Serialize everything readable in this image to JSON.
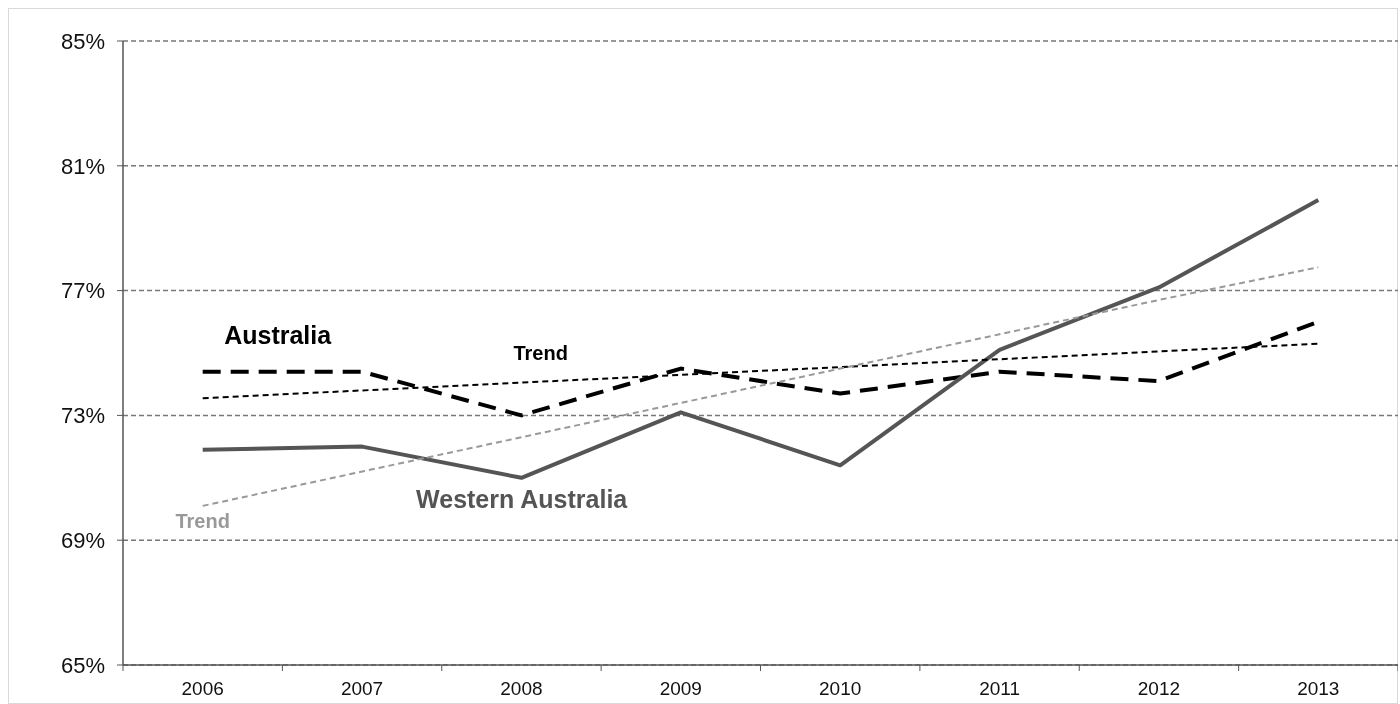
{
  "chart_data": {
    "type": "line",
    "x": [
      2006,
      2007,
      2008,
      2009,
      2010,
      2011,
      2012,
      2013
    ],
    "xlim": [
      2005.5,
      2013.5
    ],
    "xticks": [
      {
        "value": 2005.5,
        "label": null
      },
      2006,
      {
        "value": 2006.5,
        "label": null
      },
      2007,
      {
        "value": 2007.5,
        "label": null
      },
      2008,
      {
        "value": 2008.5,
        "label": null
      },
      2009,
      {
        "value": 2009.5,
        "label": null
      },
      2010,
      {
        "value": 2010.5,
        "label": null
      },
      2011,
      {
        "value": 2011.5,
        "label": null
      },
      2012,
      {
        "value": 2012.5,
        "label": null
      },
      2013,
      {
        "value": 2013.5,
        "label": null
      }
    ],
    "ylim": [
      65,
      85
    ],
    "yticks": [
      {
        "value": 65,
        "label": "65%"
      },
      {
        "value": 69,
        "label": "69%"
      },
      {
        "value": 73,
        "label": "73%"
      },
      {
        "value": 77,
        "label": "77%"
      },
      {
        "value": 81,
        "label": "81%"
      },
      {
        "value": 85,
        "label": "85%"
      }
    ],
    "grid": "y",
    "marker": "none",
    "series": [
      {
        "name": "Australia",
        "color": "#000000",
        "line_style": "dashed",
        "values": [
          74.4,
          74.4,
          73.0,
          74.5,
          73.7,
          74.4,
          74.1,
          76.0
        ]
      },
      {
        "name": "Western Australia",
        "color": "#555555",
        "line_style": "solid",
        "values": [
          71.9,
          72.0,
          71.0,
          73.1,
          71.4,
          75.1,
          77.1,
          79.9
        ]
      },
      {
        "name": "Trend",
        "color": "#000000",
        "line_style": "dashed",
        "values": [
          73.55,
          73.8,
          74.05,
          74.3,
          74.55,
          74.8,
          75.05,
          75.3
        ]
      },
      {
        "name": "Trend",
        "color": "#999999",
        "line_style": "dashed",
        "values": [
          70.1,
          71.2,
          72.3,
          73.4,
          74.5,
          75.6,
          76.7,
          77.75
        ]
      }
    ]
  }
}
